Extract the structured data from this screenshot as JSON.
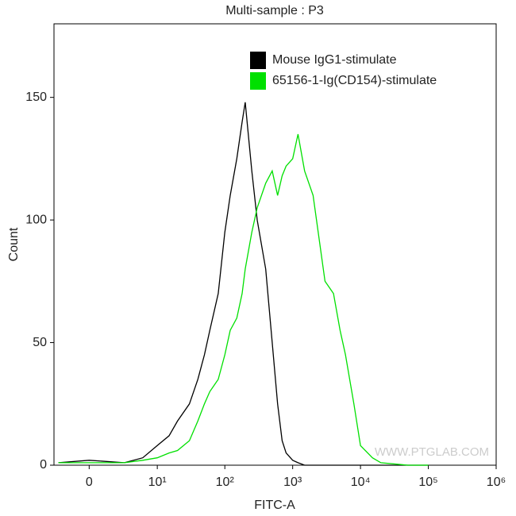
{
  "chart_data": {
    "type": "line",
    "title": "Multi-sample : P3",
    "x_label": "FITC-A",
    "y_label": "Count",
    "watermark": "WWW.PTGLAB.COM",
    "xscale": "biexponential",
    "x": [
      -2.5,
      0,
      3,
      6,
      10,
      15,
      20,
      30,
      40,
      50,
      60,
      80,
      100,
      120,
      150,
      180,
      200,
      250,
      300,
      400,
      500,
      600,
      700,
      800,
      1000,
      1200,
      1500,
      2000,
      3000,
      4000,
      5000,
      6000,
      8000,
      10000,
      15000,
      20000,
      50000,
      100000
    ],
    "series": [
      {
        "name": "Mouse IgG1-stimulate",
        "color": "#000000",
        "values": [
          1,
          2,
          1,
          3,
          8,
          12,
          18,
          25,
          35,
          45,
          55,
          70,
          95,
          110,
          125,
          140,
          148,
          120,
          100,
          80,
          50,
          25,
          10,
          5,
          2,
          1,
          0,
          0,
          0,
          0,
          0,
          0,
          0,
          0,
          0,
          0,
          0,
          0
        ]
      },
      {
        "name": "65156-1-Ig(CD154)-stimulate",
        "color": "#00e000",
        "values": [
          1,
          1,
          1,
          2,
          3,
          5,
          6,
          10,
          18,
          25,
          30,
          35,
          45,
          55,
          60,
          70,
          80,
          95,
          105,
          115,
          120,
          110,
          118,
          122,
          125,
          135,
          120,
          110,
          75,
          70,
          55,
          45,
          25,
          8,
          3,
          1,
          0,
          0
        ]
      }
    ],
    "xlim": [
      -3,
      1000000
    ],
    "xticks": [
      0,
      {
        "value": 10,
        "label": "10¹"
      },
      {
        "value": 100,
        "label": "10²"
      },
      {
        "value": 1000,
        "label": "10³"
      },
      {
        "value": 10000,
        "label": "10⁴"
      },
      {
        "value": 100000,
        "label": "10⁵"
      },
      {
        "value": 1000000,
        "label": "10⁶"
      }
    ],
    "ylim": [
      0,
      180
    ],
    "yticks": [
      0,
      50,
      100,
      150
    ],
    "grid": false,
    "legend": "top-right"
  }
}
